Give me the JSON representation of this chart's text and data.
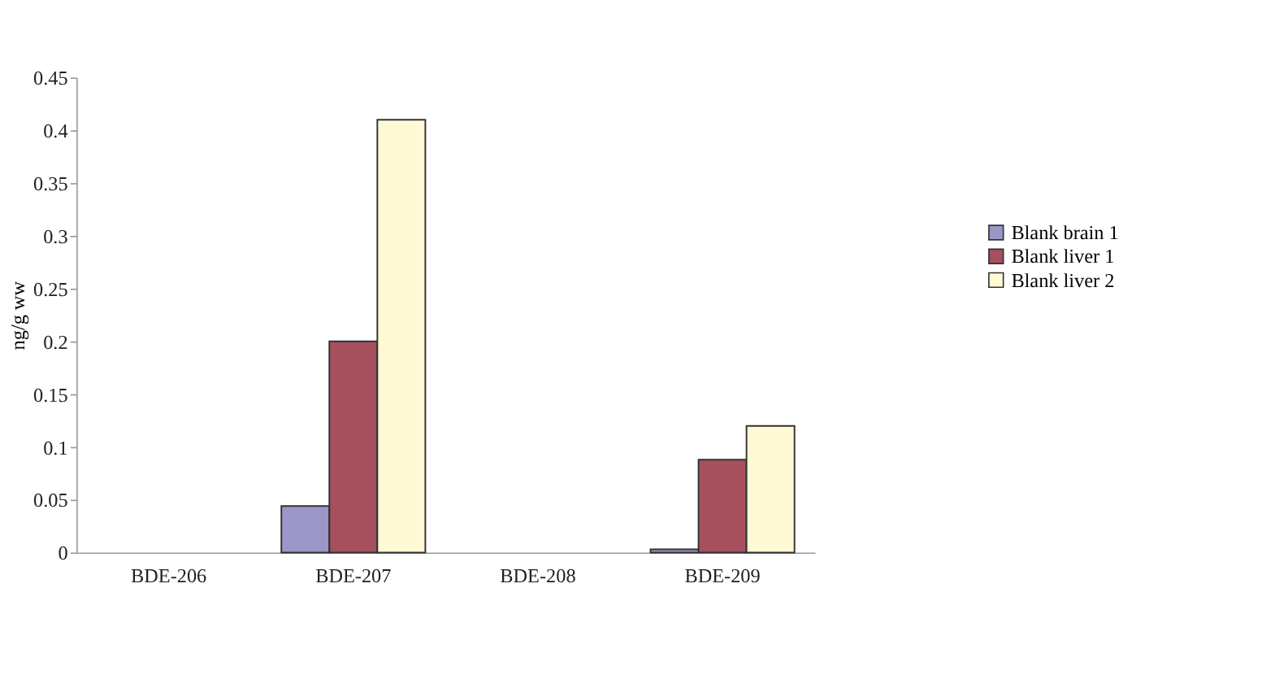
{
  "chart_data": {
    "type": "bar",
    "ylabel": "ng/g ww",
    "categories": [
      "BDE-206",
      "BDE-207",
      "BDE-208",
      "BDE-209"
    ],
    "series": [
      {
        "name": "Blank brain 1",
        "color": "#9b97c9",
        "values": [
          0,
          0.044,
          0,
          0.003
        ]
      },
      {
        "name": "Blank liver 1",
        "color": "#a6505e",
        "values": [
          0,
          0.2,
          0,
          0.088
        ]
      },
      {
        "name": "Blank liver 2",
        "color": "#fff9d6",
        "values": [
          0,
          0.41,
          0,
          0.12
        ]
      }
    ],
    "ylim": [
      0,
      0.45
    ],
    "yticks": [
      0,
      0.05,
      0.1,
      0.15,
      0.2,
      0.25,
      0.3,
      0.35,
      0.4,
      0.45
    ],
    "grid": false,
    "legend": "right"
  }
}
